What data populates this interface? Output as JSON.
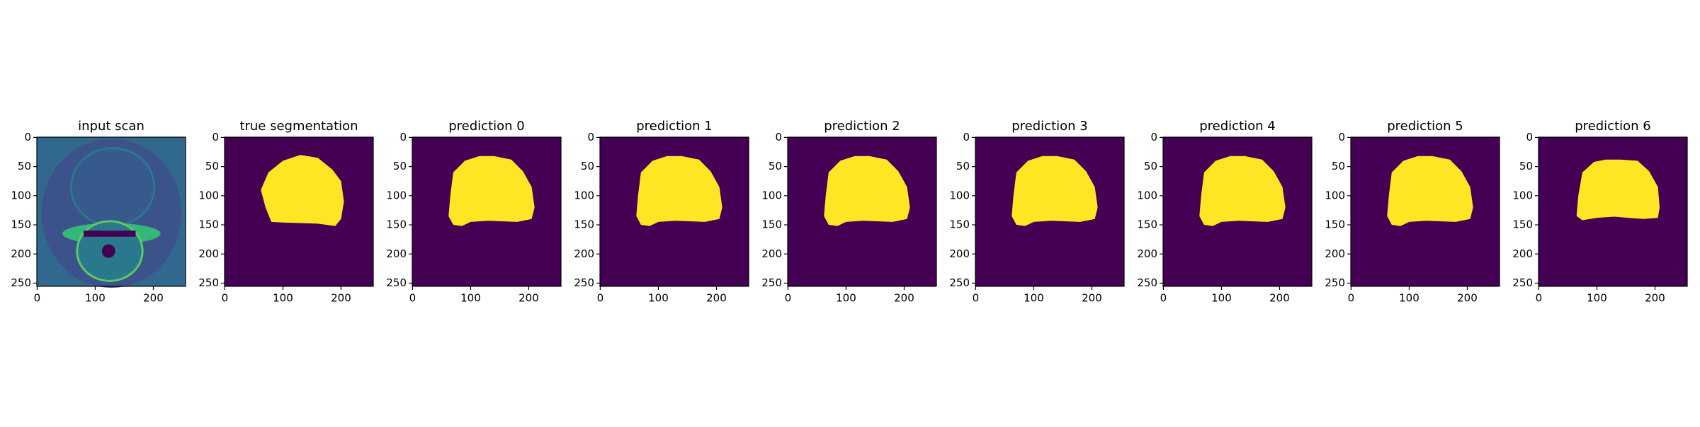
{
  "chart_data": [
    {
      "type": "image",
      "kind": "scan",
      "title": "input scan",
      "xlim": [
        -0.5,
        255.5
      ],
      "ylim": [
        255.5,
        -0.5
      ],
      "xticks": [
        0,
        100,
        200
      ],
      "yticks": [
        0,
        50,
        100,
        150,
        200,
        250
      ]
    },
    {
      "type": "image",
      "kind": "mask",
      "title": "true segmentation",
      "xlim": [
        -0.5,
        255.5
      ],
      "ylim": [
        255.5,
        -0.5
      ],
      "xticks": [
        0,
        100,
        200
      ],
      "yticks": [
        0,
        50,
        100,
        150,
        200,
        250
      ]
    },
    {
      "type": "image",
      "kind": "mask",
      "title": "prediction 0",
      "xlim": [
        -0.5,
        255.5
      ],
      "ylim": [
        255.5,
        -0.5
      ],
      "xticks": [
        0,
        100,
        200
      ],
      "yticks": [
        0,
        50,
        100,
        150,
        200,
        250
      ]
    },
    {
      "type": "image",
      "kind": "mask",
      "title": "prediction 1",
      "xlim": [
        -0.5,
        255.5
      ],
      "ylim": [
        255.5,
        -0.5
      ],
      "xticks": [
        0,
        100,
        200
      ],
      "yticks": [
        0,
        50,
        100,
        150,
        200,
        250
      ]
    },
    {
      "type": "image",
      "kind": "mask",
      "title": "prediction 2",
      "xlim": [
        -0.5,
        255.5
      ],
      "ylim": [
        255.5,
        -0.5
      ],
      "xticks": [
        0,
        100,
        200
      ],
      "yticks": [
        0,
        50,
        100,
        150,
        200,
        250
      ]
    },
    {
      "type": "image",
      "kind": "mask",
      "title": "prediction 3",
      "xlim": [
        -0.5,
        255.5
      ],
      "ylim": [
        255.5,
        -0.5
      ],
      "xticks": [
        0,
        100,
        200
      ],
      "yticks": [
        0,
        50,
        100,
        150,
        200,
        250
      ]
    },
    {
      "type": "image",
      "kind": "mask",
      "title": "prediction 4",
      "xlim": [
        -0.5,
        255.5
      ],
      "ylim": [
        255.5,
        -0.5
      ],
      "xticks": [
        0,
        100,
        200
      ],
      "yticks": [
        0,
        50,
        100,
        150,
        200,
        250
      ]
    },
    {
      "type": "image",
      "kind": "mask",
      "title": "prediction 5",
      "xlim": [
        -0.5,
        255.5
      ],
      "ylim": [
        255.5,
        -0.5
      ],
      "xticks": [
        0,
        100,
        200
      ],
      "yticks": [
        0,
        50,
        100,
        150,
        200,
        250
      ]
    },
    {
      "type": "image",
      "kind": "mask",
      "title": "prediction 6",
      "xlim": [
        -0.5,
        255.5
      ],
      "ylim": [
        255.5,
        -0.5
      ],
      "xticks": [
        0,
        100,
        200
      ],
      "yticks": [
        0,
        50,
        100,
        150,
        200,
        250
      ]
    }
  ]
}
